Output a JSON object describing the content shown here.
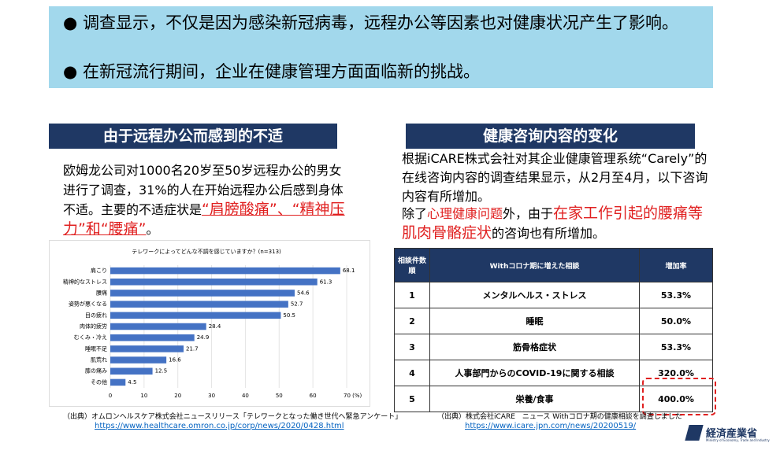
{
  "bullets": [
    "调查显示，不仅是因为感染新冠病毒，远程办公等因素也对健康状况产生了影响。",
    "在新冠流行期间，企业在健康管理方面面临新的挑战。"
  ],
  "left": {
    "heading": "由于远程办公而感到的不适",
    "paragraph": [
      "欧姆龙公司对1000名20岁至50岁远程办公的男女进行了调查，31%的人在开始远程办公后感到身体不适。主要的不适症状是",
      "“肩膀酸痛”、“精神压力”和“腰痛”",
      "。"
    ],
    "source": "（出典）オムロンヘルスケア株式会社ニュースリリース「テレワークとなった働き世代へ緊急アンケート」",
    "url": "https://www.healthcare.omron.co.jp/corp/news/2020/0428.html"
  },
  "chart_data": {
    "type": "bar",
    "orientation": "horizontal",
    "title": "テレワークによってどんな不調を感じていますか？(n=313)",
    "categories": [
      "肩こり",
      "精神的なストレス",
      "腰痛",
      "姿勢が悪くなる",
      "目の疲れ",
      "肉体的疲労",
      "むくみ・冷え",
      "睡眠不足",
      "肌荒れ",
      "膝の痛み",
      "その他"
    ],
    "values": [
      68.1,
      61.3,
      54.6,
      52.7,
      50.5,
      28.4,
      24.9,
      21.7,
      16.6,
      12.5,
      4.5
    ],
    "color": "#4472c4",
    "xlim": [
      0,
      70
    ],
    "xticks": [
      0,
      10,
      20,
      30,
      40,
      50,
      60,
      {
        "value": 70,
        "label": "70 (%)"
      }
    ],
    "grid": true
  },
  "right": {
    "heading": "健康咨询内容的变化",
    "paragraph1": "根据iCARE株式会社对其企业健康管理系统“Carely”的在线咨询内容的调查结果显示，从2月至4月，以下咨询内容有所增加。",
    "paragraph2": [
      "除了",
      "心理健康问题",
      "外，由于",
      "在家工作引起的腰痛等肌肉骨骼症状",
      "的咨询也有所增加。"
    ],
    "source": "（出典）株式会社iCARE　ニュース Withコロナ期の健康相談を調査しました",
    "url": "https://www.icare.jpn.com/news/20200519/"
  },
  "table": {
    "header": [
      "相談件数順",
      "Withコロナ期に増えた相談",
      "増加率"
    ],
    "rows": [
      [
        "1",
        "メンタルヘルス・ストレス",
        "53.3%"
      ],
      [
        "2",
        "睡眠",
        "50.0%"
      ],
      [
        "3",
        "筋骨格症状",
        "53.3%"
      ],
      [
        "4",
        "人事部門からのCOVID-19に関する相談",
        "320.0%"
      ],
      [
        "5",
        "栄養/食事",
        "400.0%"
      ]
    ]
  },
  "logo": {
    "name": "経済産業省",
    "english": "Ministry of Economy, Trade and Industry"
  }
}
